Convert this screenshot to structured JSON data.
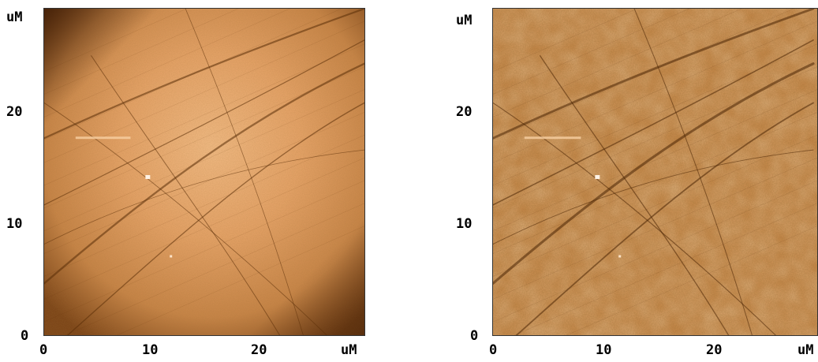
{
  "images": [
    {
      "name": "afm-scan-raw",
      "unit_label": "uM",
      "y_ticks": [
        "20",
        "10",
        "0"
      ],
      "x_ticks": [
        "0",
        "10",
        "20"
      ],
      "x_unit_label": "uM",
      "colors": {
        "dark": "#5a2e08",
        "mid": "#c0803f",
        "light": "#f0b47a"
      }
    },
    {
      "name": "afm-scan-flattened",
      "unit_label": "uM",
      "y_ticks": [
        "20",
        "10",
        "0"
      ],
      "x_ticks": [
        "0",
        "10",
        "20"
      ],
      "x_unit_label": "uM",
      "colors": {
        "dark": "#5a2e08",
        "mid": "#b7783a",
        "light": "#e8a868"
      }
    }
  ]
}
